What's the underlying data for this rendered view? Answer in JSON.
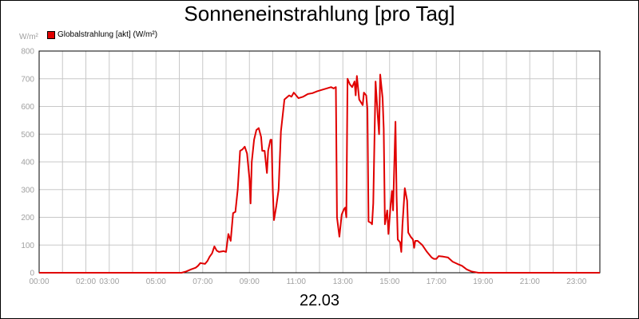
{
  "chart_data": {
    "type": "line",
    "title": "Sonneneinstrahlung [pro Tag]",
    "ylabel": "W/m²",
    "xlabel": "22.03",
    "ylim": [
      0,
      800
    ],
    "xlim": [
      0,
      24
    ],
    "yticks": [
      0,
      100,
      200,
      300,
      400,
      500,
      600,
      700,
      800
    ],
    "xticks": [
      {
        "v": 0,
        "label": "00:00"
      },
      {
        "v": 1,
        "label": ""
      },
      {
        "v": 2,
        "label": "02:00"
      },
      {
        "v": 3,
        "label": "03:00"
      },
      {
        "v": 4,
        "label": ""
      },
      {
        "v": 5,
        "label": "05:00"
      },
      {
        "v": 6,
        "label": ""
      },
      {
        "v": 7,
        "label": "07:00"
      },
      {
        "v": 8,
        "label": ""
      },
      {
        "v": 9,
        "label": "09:00"
      },
      {
        "v": 10,
        "label": ""
      },
      {
        "v": 11,
        "label": "11:00"
      },
      {
        "v": 12,
        "label": ""
      },
      {
        "v": 13,
        "label": "13:00"
      },
      {
        "v": 14,
        "label": ""
      },
      {
        "v": 15,
        "label": "15:00"
      },
      {
        "v": 16,
        "label": ""
      },
      {
        "v": 17,
        "label": "17:00"
      },
      {
        "v": 18,
        "label": ""
      },
      {
        "v": 19,
        "label": "19:00"
      },
      {
        "v": 20,
        "label": ""
      },
      {
        "v": 21,
        "label": "21:00"
      },
      {
        "v": 22,
        "label": ""
      },
      {
        "v": 23,
        "label": "23:00"
      },
      {
        "v": 24,
        "label": ""
      }
    ],
    "grid": true,
    "legend": "top-left",
    "series": [
      {
        "name": "Globalstrahlung [akt] (W/m²)",
        "color": "#e00000",
        "points": [
          [
            0,
            0
          ],
          [
            6.1,
            0
          ],
          [
            6.3,
            5
          ],
          [
            6.5,
            12
          ],
          [
            6.7,
            18
          ],
          [
            6.8,
            25
          ],
          [
            6.9,
            35
          ],
          [
            7.1,
            32
          ],
          [
            7.2,
            42
          ],
          [
            7.3,
            58
          ],
          [
            7.4,
            70
          ],
          [
            7.5,
            95
          ],
          [
            7.6,
            80
          ],
          [
            7.7,
            75
          ],
          [
            7.9,
            78
          ],
          [
            8.0,
            75
          ],
          [
            8.1,
            140
          ],
          [
            8.2,
            115
          ],
          [
            8.3,
            215
          ],
          [
            8.4,
            220
          ],
          [
            8.5,
            300
          ],
          [
            8.6,
            440
          ],
          [
            8.7,
            445
          ],
          [
            8.8,
            455
          ],
          [
            8.9,
            430
          ],
          [
            9.0,
            340
          ],
          [
            9.05,
            250
          ],
          [
            9.1,
            400
          ],
          [
            9.2,
            480
          ],
          [
            9.3,
            515
          ],
          [
            9.4,
            522
          ],
          [
            9.5,
            490
          ],
          [
            9.55,
            440
          ],
          [
            9.65,
            440
          ],
          [
            9.75,
            360
          ],
          [
            9.8,
            440
          ],
          [
            9.9,
            480
          ],
          [
            9.95,
            480
          ],
          [
            10.0,
            300
          ],
          [
            10.05,
            190
          ],
          [
            10.15,
            240
          ],
          [
            10.25,
            300
          ],
          [
            10.35,
            510
          ],
          [
            10.5,
            625
          ],
          [
            10.7,
            640
          ],
          [
            10.8,
            635
          ],
          [
            10.9,
            650
          ],
          [
            11.0,
            640
          ],
          [
            11.1,
            630
          ],
          [
            11.3,
            635
          ],
          [
            11.5,
            645
          ],
          [
            11.7,
            648
          ],
          [
            11.9,
            655
          ],
          [
            12.1,
            660
          ],
          [
            12.3,
            665
          ],
          [
            12.5,
            670
          ],
          [
            12.6,
            665
          ],
          [
            12.7,
            670
          ],
          [
            12.75,
            200
          ],
          [
            12.85,
            130
          ],
          [
            12.95,
            210
          ],
          [
            13.05,
            230
          ],
          [
            13.1,
            235
          ],
          [
            13.15,
            200
          ],
          [
            13.2,
            700
          ],
          [
            13.3,
            680
          ],
          [
            13.4,
            670
          ],
          [
            13.5,
            690
          ],
          [
            13.55,
            640
          ],
          [
            13.6,
            710
          ],
          [
            13.7,
            625
          ],
          [
            13.85,
            605
          ],
          [
            13.9,
            650
          ],
          [
            14.0,
            640
          ],
          [
            14.05,
            590
          ],
          [
            14.1,
            185
          ],
          [
            14.2,
            180
          ],
          [
            14.25,
            175
          ],
          [
            14.3,
            250
          ],
          [
            14.4,
            690
          ],
          [
            14.5,
            560
          ],
          [
            14.55,
            500
          ],
          [
            14.6,
            715
          ],
          [
            14.7,
            630
          ],
          [
            14.75,
            520
          ],
          [
            14.8,
            175
          ],
          [
            14.9,
            225
          ],
          [
            14.95,
            140
          ],
          [
            15.05,
            250
          ],
          [
            15.1,
            295
          ],
          [
            15.15,
            225
          ],
          [
            15.25,
            545
          ],
          [
            15.3,
            280
          ],
          [
            15.35,
            120
          ],
          [
            15.45,
            110
          ],
          [
            15.5,
            75
          ],
          [
            15.55,
            170
          ],
          [
            15.65,
            305
          ],
          [
            15.75,
            260
          ],
          [
            15.8,
            145
          ],
          [
            15.9,
            130
          ],
          [
            16.0,
            120
          ],
          [
            16.05,
            90
          ],
          [
            16.1,
            115
          ],
          [
            16.2,
            115
          ],
          [
            16.4,
            100
          ],
          [
            16.6,
            75
          ],
          [
            16.8,
            55
          ],
          [
            16.9,
            50
          ],
          [
            17.0,
            50
          ],
          [
            17.1,
            60
          ],
          [
            17.3,
            58
          ],
          [
            17.5,
            55
          ],
          [
            17.7,
            40
          ],
          [
            17.9,
            32
          ],
          [
            18.1,
            25
          ],
          [
            18.3,
            12
          ],
          [
            18.5,
            5
          ],
          [
            18.8,
            0
          ],
          [
            24,
            0
          ]
        ]
      }
    ]
  }
}
